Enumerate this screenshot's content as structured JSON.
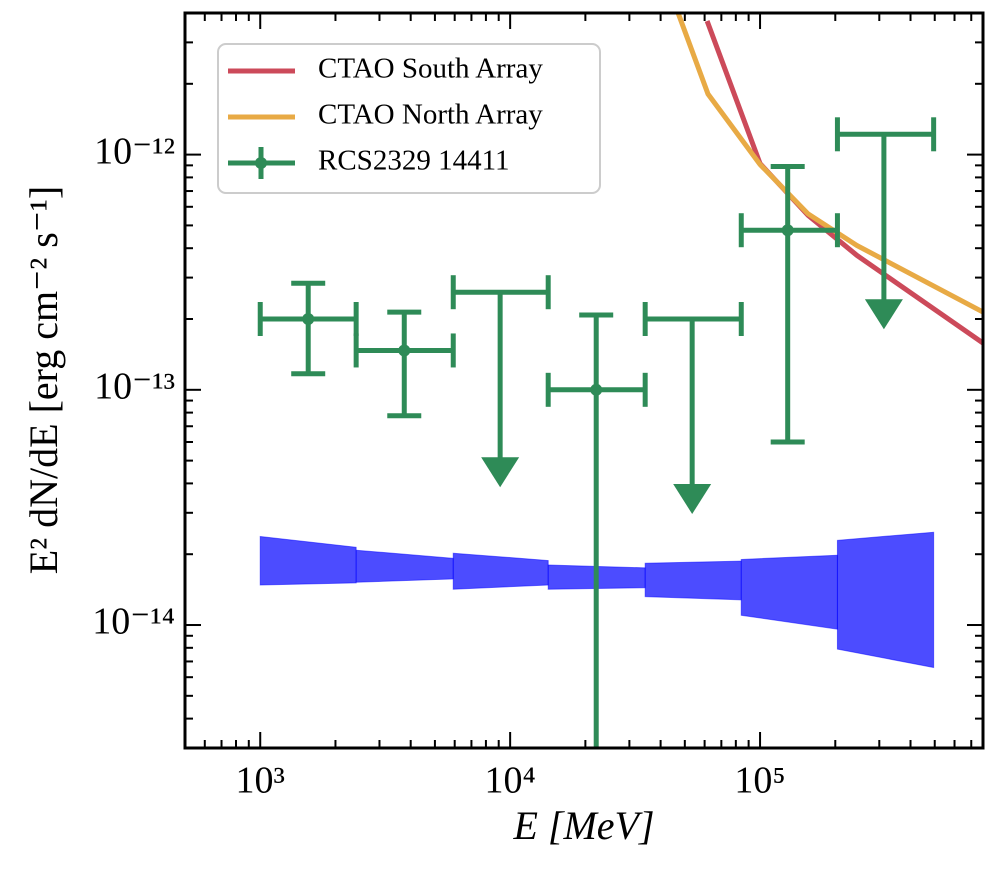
{
  "chart_data": {
    "type": "sed",
    "xlabel": "E [MeV]",
    "ylabel": "E² dN/dE [erg cm⁻² s⁻¹]",
    "xscale": "log",
    "yscale": "log",
    "xlim": [
      500,
      780000
    ],
    "ylim": [
      3e-15,
      4e-12
    ],
    "xticks": [
      {
        "value": 1000,
        "label": "10³"
      },
      {
        "value": 10000,
        "label": "10⁴"
      },
      {
        "value": 100000,
        "label": "10⁵"
      }
    ],
    "yticks": [
      {
        "value": 1e-14,
        "label": "10⁻¹⁴"
      },
      {
        "value": 1e-13,
        "label": "10⁻¹³"
      },
      {
        "value": 1e-12,
        "label": "10⁻¹²"
      }
    ],
    "legend": "upper left",
    "lines": [
      {
        "name": "CTAO South Array",
        "color": "#cc4a5a",
        "x": [
          61400,
          100000,
          155600,
          244000,
          780000
        ],
        "values": [
          3.7e-12,
          9.16e-13,
          5.52e-13,
          3.73e-13,
          1.58e-13
        ]
      },
      {
        "name": "CTAO North Array",
        "color": "#e8aa45",
        "x": [
          47000,
          61900,
          100000,
          155600,
          244000,
          780000
        ],
        "values": [
          4e-12,
          1.81e-12,
          9.08e-13,
          5.6e-13,
          4.11e-13,
          2.14e-13
        ]
      }
    ],
    "points": {
      "name": "RCS2329 14411",
      "color": "#2e8b57",
      "x": [
        1556,
        3770,
        9120,
        22100,
        53500,
        129000,
        313000
      ],
      "xlow": [
        1000,
        2420,
        5920,
        14200,
        34700,
        84100,
        204000
      ],
      "xhigh": [
        2420,
        5920,
        14200,
        34700,
        84100,
        204000,
        495000
      ],
      "values": [
        2e-13,
        1.47e-13,
        2.6e-13,
        1e-13,
        2e-13,
        4.77e-13,
        1.22e-12
      ],
      "ylow": [
        1.17e-13,
        7.76e-14,
        null,
        0,
        null,
        6e-14,
        null
      ],
      "yhigh": [
        2.84e-13,
        2.14e-13,
        null,
        2.08e-13,
        null,
        8.9e-13,
        null
      ],
      "upper_limits": [
        false,
        false,
        true,
        false,
        true,
        false,
        true
      ]
    },
    "band": {
      "color": "#0000ff",
      "xlow": [
        1000,
        2420,
        5920,
        14200,
        34700,
        84100,
        204000
      ],
      "xhigh": [
        2420,
        5920,
        14200,
        34700,
        84100,
        204000,
        495000
      ],
      "upper_left": [
        2.38e-14,
        2.08e-14,
        2.02e-14,
        1.8e-14,
        1.83e-14,
        1.9e-14,
        2.29e-14
      ],
      "upper_right": [
        2.14e-14,
        1.92e-14,
        1.88e-14,
        1.75e-14,
        1.87e-14,
        1.98e-14,
        2.48e-14
      ],
      "lower_left": [
        1.48e-14,
        1.52e-14,
        1.42e-14,
        1.42e-14,
        1.32e-14,
        1.1e-14,
        7.9e-15
      ],
      "lower_right": [
        1.51e-14,
        1.57e-14,
        1.48e-14,
        1.44e-14,
        1.28e-14,
        9.6e-15,
        6.6e-15
      ]
    }
  }
}
